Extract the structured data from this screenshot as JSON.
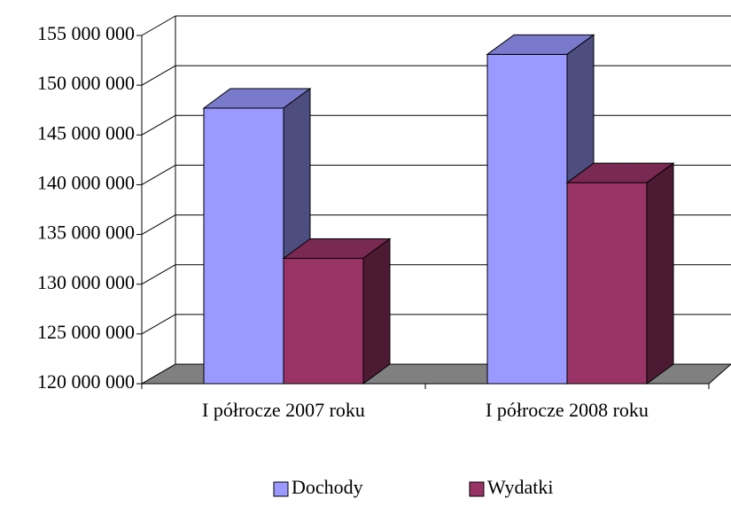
{
  "chart_data": {
    "type": "bar3d",
    "categories": [
      "I półrocze 2007 roku",
      "I półrocze 2008 roku"
    ],
    "series": [
      {
        "name": "Dochody",
        "color": "#9999ff",
        "values": [
          147700000,
          153100000
        ]
      },
      {
        "name": "Wydatki",
        "color": "#993366",
        "values": [
          132600000,
          140200000
        ]
      }
    ],
    "ylim": [
      120000000,
      155000000
    ],
    "yticks": [
      {
        "value": 120000000,
        "label": "120 000 000"
      },
      {
        "value": 125000000,
        "label": "125 000 000"
      },
      {
        "value": 130000000,
        "label": "130 000 000"
      },
      {
        "value": 135000000,
        "label": "135 000 000"
      },
      {
        "value": 140000000,
        "label": "140 000 000"
      },
      {
        "value": 145000000,
        "label": "145 000 000"
      },
      {
        "value": 150000000,
        "label": "150 000 000"
      },
      {
        "value": 155000000,
        "label": "155 000 000"
      }
    ],
    "grid": true,
    "legend": "bottom",
    "floor_color": "#808080"
  }
}
